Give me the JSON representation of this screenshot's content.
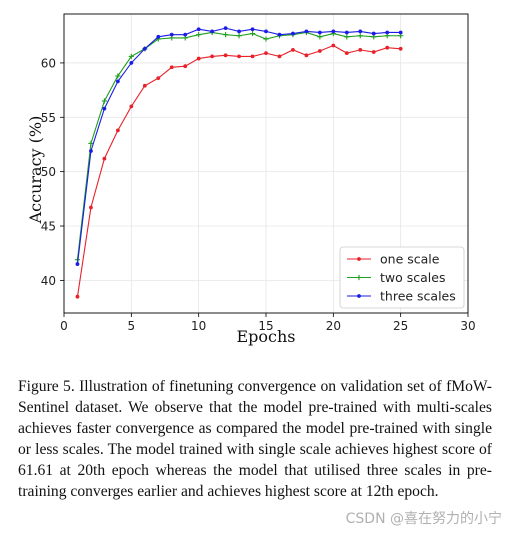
{
  "chart_data": {
    "type": "line",
    "title": "",
    "xlabel": "Epochs",
    "ylabel": "Accuracy (%)",
    "xlim": [
      0,
      30
    ],
    "ylim": [
      37,
      64.5
    ],
    "xticks": [
      "0",
      "5",
      "10",
      "15",
      "20",
      "25",
      "30"
    ],
    "yticks": [
      "40",
      "45",
      "50",
      "55",
      "60"
    ],
    "grid": true,
    "legend_position": "lower-right",
    "x": [
      1,
      2,
      3,
      4,
      5,
      6,
      7,
      8,
      9,
      10,
      11,
      12,
      13,
      14,
      15,
      16,
      17,
      18,
      19,
      20,
      21,
      22,
      23,
      24,
      25
    ],
    "series": [
      {
        "name": "one scale",
        "color": "#e8212b",
        "marker": "dot",
        "values": [
          38.5,
          46.7,
          51.2,
          53.8,
          56.0,
          57.9,
          58.6,
          59.6,
          59.7,
          60.4,
          60.6,
          60.7,
          60.6,
          60.6,
          60.9,
          60.6,
          61.2,
          60.7,
          61.1,
          61.6,
          60.9,
          61.2,
          61.0,
          61.4,
          61.3
        ]
      },
      {
        "name": "two scales",
        "color": "#1f9e1f",
        "marker": "plus",
        "values": [
          41.9,
          52.6,
          56.5,
          58.8,
          60.6,
          61.3,
          62.2,
          62.3,
          62.3,
          62.6,
          62.8,
          62.6,
          62.5,
          62.7,
          62.2,
          62.5,
          62.6,
          62.8,
          62.4,
          62.7,
          62.4,
          62.5,
          62.4,
          62.5,
          62.5
        ]
      },
      {
        "name": "three scales",
        "color": "#1c1ce6",
        "marker": "dot",
        "values": [
          41.5,
          51.9,
          55.8,
          58.3,
          60.0,
          61.3,
          62.4,
          62.6,
          62.6,
          63.1,
          62.9,
          63.2,
          62.9,
          63.1,
          62.9,
          62.6,
          62.7,
          62.9,
          62.8,
          62.9,
          62.8,
          62.9,
          62.7,
          62.8,
          62.8
        ]
      }
    ]
  },
  "caption": "Figure 5. Illustration of finetuning convergence on validation set of fMoW-Sentinel dataset. We observe that the model pre-trained with multi-scales achieves faster convergence as compared the model pre-trained with single or less scales. The model trained with single scale achieves highest score of 61.61 at 20th epoch whereas the model that utilised three scales in pre-training converges earlier and achieves highest score at 12th epoch.",
  "watermark": "CSDN @喜在努力的小宁"
}
